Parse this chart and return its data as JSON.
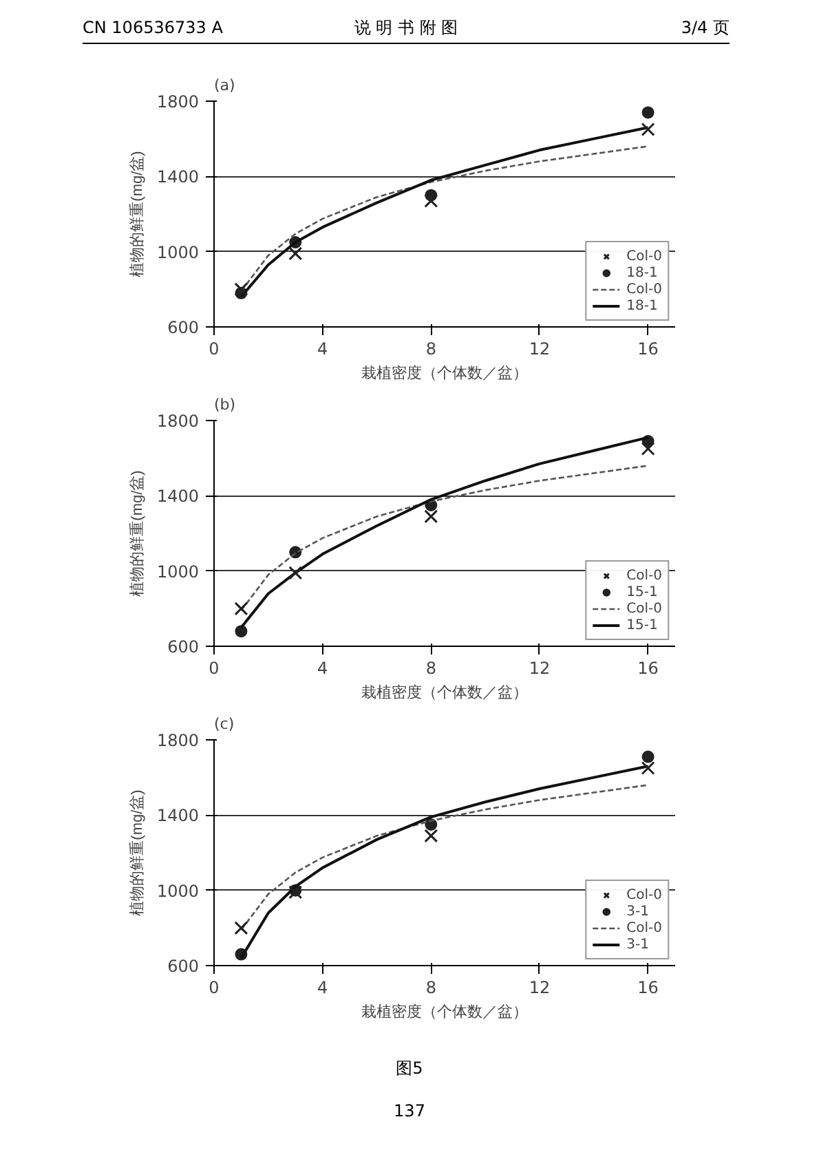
{
  "chart_data": [
    {
      "type": "scatter",
      "title": "(a)",
      "xlabel": "栽植密度（个体数／盆）",
      "ylabel": "植物的鲜重(mg/盆)",
      "xlim": [
        0,
        17
      ],
      "ylim": [
        600,
        1800
      ],
      "xticks": [
        0,
        4,
        8,
        12,
        16
      ],
      "yticks": [
        600,
        1000,
        1400,
        1800
      ],
      "grid": "y",
      "legend": "bottom right",
      "annotations": [
        "CN 106536733 A",
        "说 明 书 附 图",
        "3/4 页"
      ],
      "series": [
        {
          "name": "Col-0",
          "marker": "cross",
          "color": "#222222",
          "x": [
            1,
            3,
            8,
            16
          ],
          "values": [
            800,
            990,
            1270,
            1650
          ]
        },
        {
          "name": "18-1",
          "marker": "circle",
          "color": "#222222",
          "x": [
            1,
            3,
            8,
            16
          ],
          "values": [
            780,
            1050,
            1300,
            1740
          ]
        },
        {
          "name": "Col-0",
          "type": "line",
          "line_style": "dashed",
          "color": "#555555",
          "x": [
            1,
            2,
            3,
            4,
            6,
            8,
            10,
            12,
            14,
            16
          ],
          "values": [
            790,
            980,
            1095,
            1175,
            1290,
            1370,
            1430,
            1480,
            1520,
            1560
          ]
        },
        {
          "name": "18-1",
          "type": "line",
          "line_style": "solid",
          "color": "#111111",
          "x": [
            1,
            2,
            3,
            4,
            6,
            8,
            10,
            12,
            14,
            16
          ],
          "values": [
            760,
            930,
            1050,
            1130,
            1260,
            1380,
            1460,
            1540,
            1600,
            1660
          ]
        }
      ]
    },
    {
      "type": "scatter",
      "title": "(b)",
      "xlabel": "栽植密度（个体数／盆）",
      "ylabel": "植物的鲜重(mg/盆)",
      "xlim": [
        0,
        17
      ],
      "ylim": [
        600,
        1800
      ],
      "xticks": [
        0,
        4,
        8,
        12,
        16
      ],
      "yticks": [
        600,
        1000,
        1400,
        1800
      ],
      "grid": "y",
      "legend": "bottom right",
      "series": [
        {
          "name": "Col-0",
          "marker": "cross",
          "color": "#222222",
          "x": [
            1,
            3,
            8,
            16
          ],
          "values": [
            800,
            990,
            1290,
            1650
          ]
        },
        {
          "name": "15-1",
          "marker": "circle",
          "color": "#222222",
          "x": [
            1,
            3,
            8,
            16
          ],
          "values": [
            680,
            1100,
            1350,
            1690
          ]
        },
        {
          "name": "Col-0",
          "type": "line",
          "line_style": "dashed",
          "color": "#555555",
          "x": [
            1,
            2,
            3,
            4,
            6,
            8,
            10,
            12,
            14,
            16
          ],
          "values": [
            790,
            980,
            1095,
            1175,
            1290,
            1370,
            1430,
            1480,
            1520,
            1560
          ]
        },
        {
          "name": "15-1",
          "type": "line",
          "line_style": "solid",
          "color": "#111111",
          "x": [
            1,
            2,
            3,
            4,
            6,
            8,
            10,
            12,
            14,
            16
          ],
          "values": [
            700,
            880,
            990,
            1090,
            1240,
            1380,
            1480,
            1570,
            1640,
            1710
          ]
        }
      ]
    },
    {
      "type": "scatter",
      "title": "(c)",
      "xlabel": "栽植密度（个体数／盆）",
      "ylabel": "植物的鲜重(mg/盆)",
      "xlim": [
        0,
        17
      ],
      "ylim": [
        600,
        1800
      ],
      "xticks": [
        0,
        4,
        8,
        12,
        16
      ],
      "yticks": [
        600,
        1000,
        1400,
        1800
      ],
      "grid": "y",
      "legend": "bottom right",
      "annotations": [
        "图5",
        "137"
      ],
      "series": [
        {
          "name": "Col-0",
          "marker": "cross",
          "color": "#222222",
          "x": [
            1,
            3,
            8,
            16
          ],
          "values": [
            800,
            990,
            1290,
            1650
          ]
        },
        {
          "name": "3-1",
          "marker": "circle",
          "color": "#222222",
          "x": [
            1,
            3,
            8,
            16
          ],
          "values": [
            660,
            1000,
            1350,
            1710
          ]
        },
        {
          "name": "Col-0",
          "type": "line",
          "line_style": "dashed",
          "color": "#555555",
          "x": [
            1,
            2,
            3,
            4,
            6,
            8,
            10,
            12,
            14,
            16
          ],
          "values": [
            790,
            980,
            1095,
            1175,
            1290,
            1370,
            1430,
            1480,
            1520,
            1560
          ]
        },
        {
          "name": "3-1",
          "type": "line",
          "line_style": "solid",
          "color": "#111111",
          "x": [
            1,
            2,
            3,
            4,
            6,
            8,
            10,
            12,
            14,
            16
          ],
          "values": [
            640,
            880,
            1020,
            1120,
            1270,
            1390,
            1470,
            1540,
            1600,
            1660
          ]
        }
      ]
    }
  ]
}
